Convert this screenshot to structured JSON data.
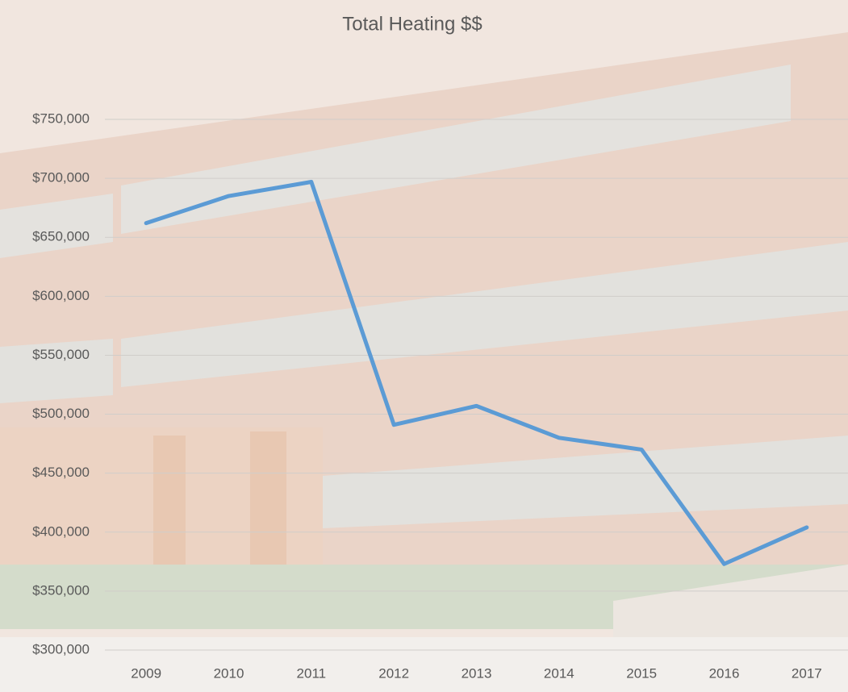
{
  "chart_data": {
    "type": "line",
    "title": "Total Heating $$",
    "categories": [
      "2009",
      "2010",
      "2011",
      "2012",
      "2013",
      "2014",
      "2015",
      "2016",
      "2017"
    ],
    "series": [
      {
        "name": "Total Heating $$",
        "color": "#5b9bd5",
        "values": [
          662000,
          685000,
          697000,
          491000,
          507000,
          480000,
          470000,
          373000,
          404000
        ]
      }
    ],
    "ylim": [
      300000,
      750000
    ],
    "yticks": [
      {
        "value": 300000,
        "label": "$300,000"
      },
      {
        "value": 350000,
        "label": "$350,000"
      },
      {
        "value": 400000,
        "label": "$400,000"
      },
      {
        "value": 450000,
        "label": "$450,000"
      },
      {
        "value": 500000,
        "label": "$500,000"
      },
      {
        "value": 550000,
        "label": "$550,000"
      },
      {
        "value": 600000,
        "label": "$600,000"
      },
      {
        "value": 650000,
        "label": "$650,000"
      },
      {
        "value": 700000,
        "label": "$700,000"
      },
      {
        "value": 750000,
        "label": "$750,000"
      }
    ],
    "grid": true
  }
}
